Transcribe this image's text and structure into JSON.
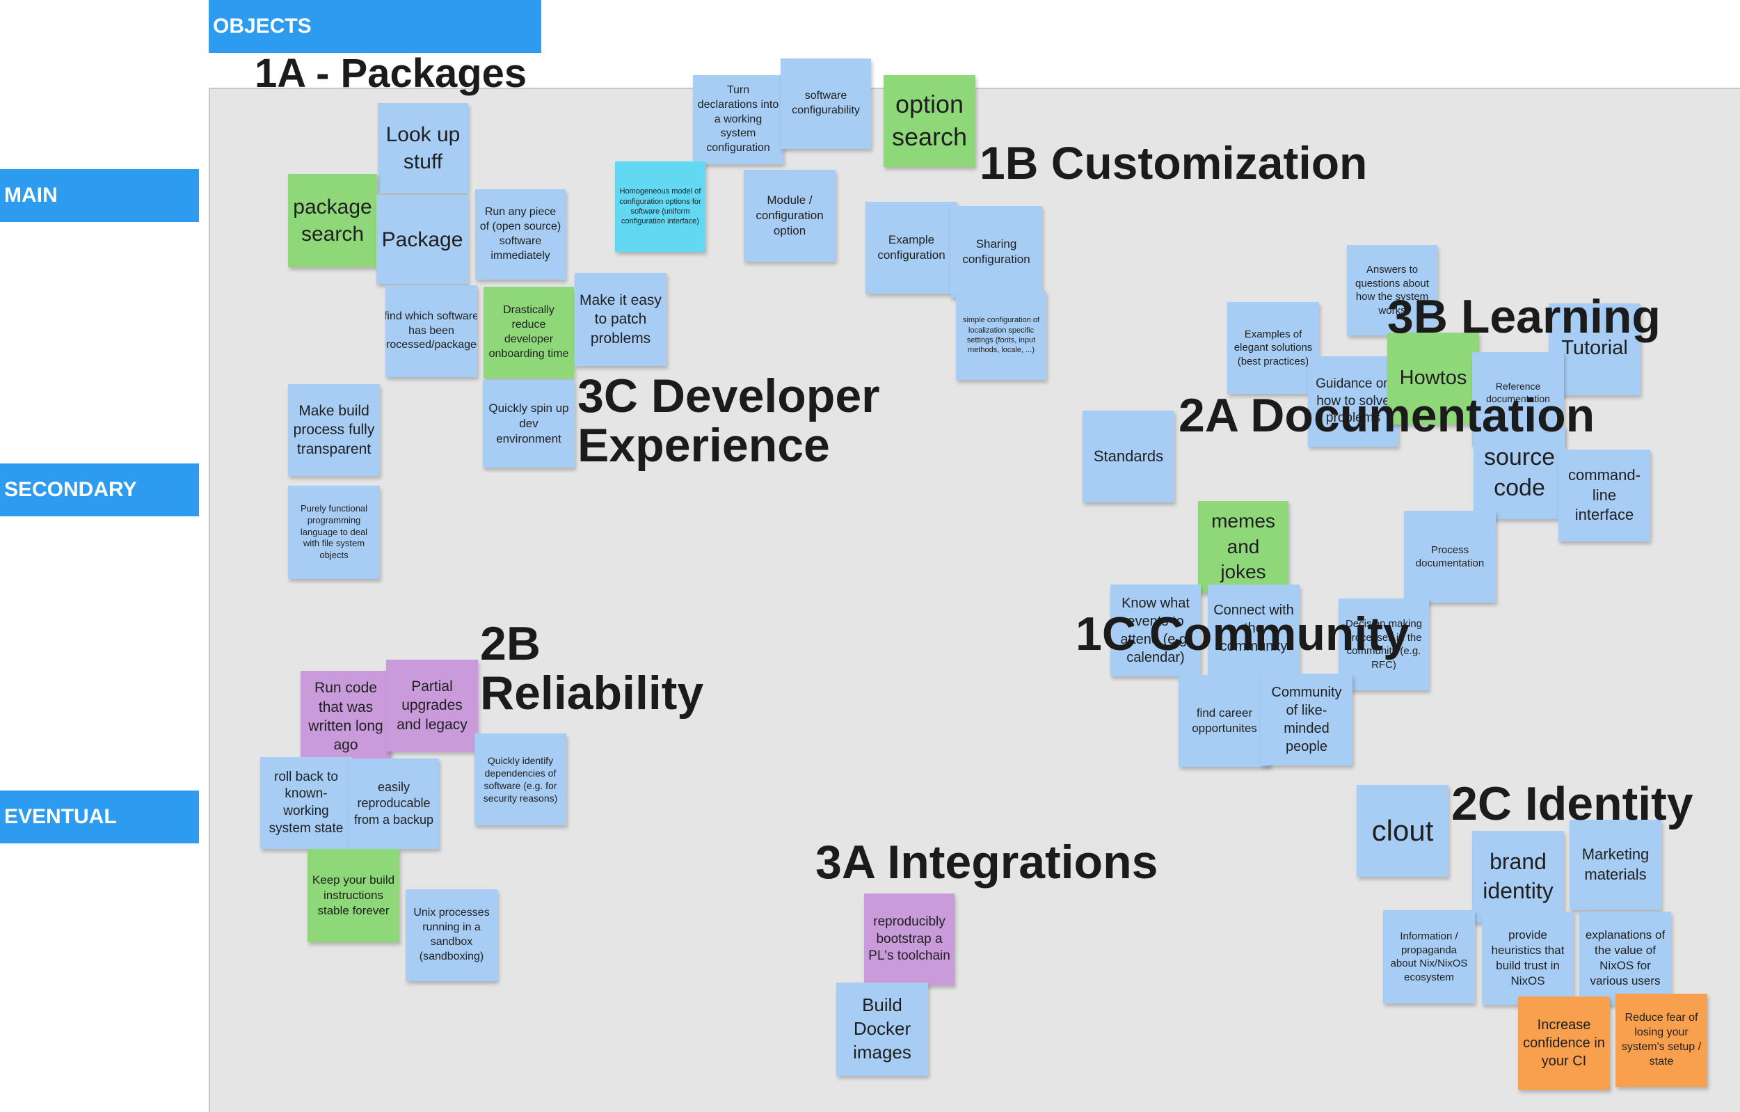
{
  "frame": {
    "title": "OBJECTS"
  },
  "rows": {
    "main": "MAIN",
    "secondary": "SECONDARY",
    "eventual": "EVENTUAL"
  },
  "headings": {
    "h_1a": "1A - Packages",
    "h_1b": "1B Customization",
    "h_3c": "3C Developer\nExperience",
    "h_3b": "3B Learning",
    "h_2a": "2A Documentation",
    "h_2b": "2B\nReliability",
    "h_1c": "1C Community",
    "h_2c": "2C Identity",
    "h_3a": "3A Integrations"
  },
  "notes": {
    "look_up_stuff": "Look up stuff",
    "package_search": "package search",
    "package": "Package",
    "run_any_piece": "Run any piece of (open source) software immediately",
    "turn_declarations": "Turn declarations into a working system configuration",
    "software_configurability": "software configurability",
    "option_search": "option search",
    "homogeneous_model": "Homogeneous model of configuration options for software (uniform configuration interface)",
    "module_configuration": "Module / configuration option",
    "find_which_software": "find which software has been processed/packaged",
    "drastically_reduce": "Drastically reduce developer onboarding time",
    "make_it_easy": "Make it easy to patch problems",
    "example_configuration": "Example configuration",
    "sharing_configuration": "Sharing configuration",
    "simple_configuration": "simple configuration of localization specific settings (fonts, input methods, locale, ...)",
    "make_build_process": "Make build process fully transparent",
    "quickly_spin_up": "Quickly spin up dev environment",
    "purely_functional": "Purely functional programming language to deal with file system objects",
    "answers_to_questions": "Answers to questions about how the system works",
    "examples_of_elegant": "Examples of elegant solutions (best practices)",
    "tutorial": "Tutorial",
    "guidance": "Guidance on how to solve problems",
    "howtos": "Howtos",
    "reference_documentation": "Reference documentation",
    "standards": "Standards",
    "source_code": "source code",
    "command_line": "command-line interface",
    "memes_and_jokes": "memes and jokes",
    "process_documentation": "Process documentation",
    "know_what_events": "Know what events to attend (e.g. calendar)",
    "connect_with_community": "Connect with the community",
    "decision_making": "Decision making processes in the community (e.g. RFC)",
    "find_career": "find career opportunites",
    "community_of_like": "Community of like-minded people",
    "run_code_written": "Run code that was written long ago",
    "partial_upgrades": "Partial upgrades and legacy",
    "quickly_identify": "Quickly identify dependencies of software (e.g. for security reasons)",
    "roll_back": "roll back to known-working system state",
    "easily_reproducible": "easily reproducable from a backup",
    "keep_your_build": "Keep your build instructions stable forever",
    "unix_processes": "Unix processes running in a sandbox (sandboxing)",
    "clout": "clout",
    "brand_identity": "brand identity",
    "marketing_materials": "Marketing materials",
    "information_propaganda": "Information / propaganda about Nix/NixOS ecosystem",
    "provide_heuristics": "provide heuristics that build trust in NixOS",
    "explanations_of_value": "explanations of the value of NixOS for various users",
    "increase_confidence": "Increase confidence in your CI",
    "reduce_fear": "Reduce fear of losing your system's setup / state",
    "reproducibly_bootstrap": "reproducibly bootstrap a PL's toolchain",
    "build_docker": "Build Docker images"
  },
  "colors": {
    "label_bar": "#2d9bef",
    "canvas": "#e5e5e5",
    "sticky_blue": "#a7cdf4",
    "sticky_green": "#8fd87a",
    "sticky_purple": "#c99bdb",
    "sticky_orange": "#f9a04f",
    "sticky_cyan": "#63d8f2"
  }
}
